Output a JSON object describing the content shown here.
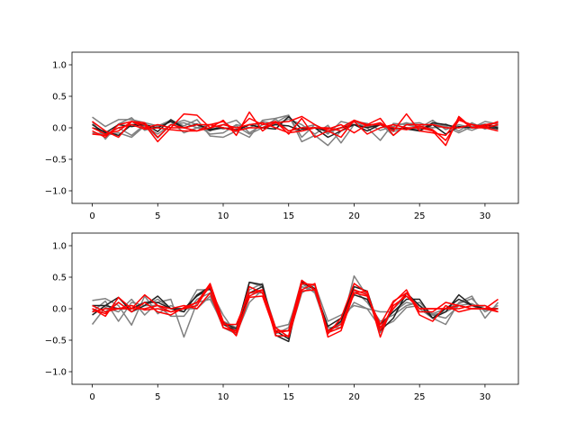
{
  "chart_data": [
    {
      "type": "line",
      "title": "",
      "xlabel": "",
      "ylabel": "",
      "xlim": [
        -1.55,
        32.55
      ],
      "ylim": [
        -1.2,
        1.2
      ],
      "xticks": [
        0,
        5,
        10,
        15,
        20,
        25,
        30
      ],
      "yticks": [
        -1.0,
        -0.5,
        0.0,
        0.5,
        1.0
      ],
      "ytick_labels": [
        "−1.0",
        "−0.5",
        "0.0",
        "0.5",
        "1.0"
      ],
      "grid": false,
      "colors": {
        "gray": "#808080",
        "black": "#222222",
        "red": "#ff0000"
      },
      "series": [
        {
          "color": "gray",
          "values": [
            0.17,
            0.02,
            0.13,
            0.13,
            0.08,
            0.03,
            0.12,
            0.03,
            0.13,
            -0.13,
            -0.15,
            -0.05,
            -0.15,
            0.12,
            0.15,
            0.2,
            -0.22,
            -0.12,
            -0.28,
            -0.05,
            0.1,
            0.0,
            -0.2,
            0.07,
            0.05,
            0.0,
            0.12,
            -0.03,
            0.05,
            0.0,
            0.1,
            0.06
          ]
        },
        {
          "color": "gray",
          "values": [
            0.1,
            -0.18,
            0.06,
            0.16,
            -0.04,
            0.02,
            0.1,
            -0.08,
            0.0,
            -0.05,
            0.05,
            0.12,
            -0.08,
            0.05,
            0.08,
            0.2,
            -0.15,
            0.05,
            -0.1,
            0.1,
            0.05,
            0.02,
            0.06,
            -0.12,
            0.06,
            0.08,
            0.0,
            0.02,
            -0.08,
            0.02,
            0.06,
            0.02
          ]
        },
        {
          "color": "gray",
          "values": [
            0.06,
            -0.12,
            -0.08,
            -0.15,
            0.03,
            -0.1,
            0.05,
            0.08,
            0.0,
            0.05,
            -0.02,
            0.03,
            -0.1,
            0.0,
            0.14,
            -0.05,
            0.0,
            0.05,
            -0.08,
            0.0,
            0.1,
            0.07,
            -0.04,
            0.02,
            0.08,
            0.02,
            0.0,
            0.06,
            -0.05,
            0.08,
            -0.02,
            0.06
          ]
        },
        {
          "color": "gray",
          "values": [
            -0.08,
            -0.1,
            0.0,
            -0.12,
            0.05,
            -0.16,
            0.05,
            0.12,
            0.05,
            -0.1,
            -0.08,
            0.05,
            0.0,
            0.1,
            0.06,
            0.14,
            0.05,
            -0.1,
            0.04,
            -0.24,
            0.05,
            -0.05,
            0.05,
            -0.06,
            0.0,
            -0.02,
            0.06,
            0.03,
            0.02,
            -0.04,
            0.04,
            0.03
          ]
        },
        {
          "color": "black",
          "values": [
            0.05,
            -0.08,
            0.05,
            0.02,
            0.05,
            0.0,
            0.1,
            0.0,
            0.05,
            -0.02,
            0.0,
            -0.05,
            0.05,
            0.0,
            -0.02,
            0.18,
            -0.02,
            0.0,
            -0.15,
            -0.05,
            0.05,
            0.0,
            0.05,
            -0.02,
            0.0,
            -0.05,
            0.08,
            0.05,
            0.0,
            0.05,
            0.02,
            -0.02
          ]
        },
        {
          "color": "black",
          "values": [
            0.0,
            -0.06,
            -0.12,
            0.05,
            0.06,
            -0.06,
            0.13,
            0.0,
            0.06,
            -0.04,
            0.0,
            -0.03,
            0.05,
            0.0,
            0.05,
            0.03,
            -0.05,
            0.0,
            -0.05,
            0.0,
            0.05,
            -0.05,
            0.05,
            0.0,
            -0.02,
            -0.05,
            0.05,
            -0.1,
            0.02,
            0.0,
            0.05,
            0.0
          ]
        },
        {
          "color": "red",
          "values": [
            0.1,
            -0.05,
            -0.15,
            0.1,
            0.05,
            -0.22,
            0.0,
            0.22,
            0.2,
            0.0,
            0.12,
            -0.12,
            0.25,
            -0.05,
            0.1,
            -0.1,
            0.15,
            -0.15,
            -0.05,
            -0.15,
            0.12,
            0.03,
            0.08,
            -0.05,
            0.22,
            -0.05,
            -0.08,
            -0.12,
            0.15,
            0.0,
            0.05,
            0.08
          ]
        },
        {
          "color": "red",
          "values": [
            -0.05,
            -0.15,
            0.05,
            0.1,
            0.08,
            -0.15,
            0.05,
            0.0,
            -0.05,
            0.05,
            0.0,
            -0.05,
            0.15,
            0.05,
            0.1,
            -0.05,
            0.0,
            0.0,
            0.0,
            -0.05,
            0.1,
            -0.1,
            0.0,
            0.05,
            0.0,
            0.0,
            -0.05,
            -0.28,
            0.18,
            0.0,
            0.0,
            -0.05
          ]
        },
        {
          "color": "red",
          "values": [
            0.0,
            -0.1,
            -0.05,
            0.1,
            0.0,
            0.05,
            0.0,
            0.0,
            0.05,
            0.05,
            0.1,
            -0.05,
            0.0,
            0.0,
            0.08,
            0.1,
            0.18,
            0.05,
            -0.05,
            0.0,
            0.12,
            0.05,
            0.15,
            -0.12,
            0.05,
            0.05,
            0.05,
            0.0,
            0.0,
            0.05,
            0.0,
            0.05
          ]
        },
        {
          "color": "red",
          "values": [
            -0.1,
            -0.12,
            0.0,
            0.05,
            -0.02,
            0.0,
            -0.03,
            -0.05,
            -0.05,
            0.0,
            0.05,
            0.0,
            0.05,
            0.08,
            0.0,
            -0.08,
            -0.05,
            0.0,
            -0.02,
            0.05,
            -0.08,
            0.05,
            0.05,
            0.0,
            -0.03,
            0.03,
            -0.03,
            -0.2,
            0.12,
            0.05,
            0.02,
            0.1
          ]
        }
      ]
    },
    {
      "type": "line",
      "title": "",
      "xlabel": "",
      "ylabel": "",
      "xlim": [
        -1.55,
        32.55
      ],
      "ylim": [
        -1.2,
        1.2
      ],
      "xticks": [
        0,
        5,
        10,
        15,
        20,
        25,
        30
      ],
      "yticks": [
        -1.0,
        -0.5,
        0.0,
        0.5,
        1.0
      ],
      "ytick_labels": [
        "−1.0",
        "−0.5",
        "0.0",
        "0.5",
        "1.0"
      ],
      "grid": false,
      "colors": {
        "gray": "#808080",
        "black": "#222222",
        "red": "#ff0000"
      },
      "series": [
        {
          "color": "gray",
          "values": [
            0.13,
            0.16,
            0.05,
            -0.26,
            0.2,
            -0.08,
            0.05,
            -0.05,
            0.3,
            0.3,
            -0.1,
            -0.4,
            0.3,
            0.4,
            -0.4,
            -0.3,
            0.45,
            0.3,
            -0.38,
            -0.22,
            0.1,
            0.0,
            -0.3,
            -0.2,
            0.02,
            0.05,
            -0.08,
            0.0,
            0.08,
            0.16,
            -0.05,
            0.05
          ]
        },
        {
          "color": "gray",
          "values": [
            -0.25,
            0.02,
            -0.05,
            0.15,
            -0.1,
            0.1,
            0.15,
            -0.45,
            0.1,
            0.15,
            -0.25,
            -0.35,
            0.42,
            0.35,
            -0.3,
            -0.25,
            0.35,
            0.28,
            -0.3,
            -0.3,
            0.52,
            0.2,
            -0.38,
            0.0,
            0.2,
            0.0,
            -0.15,
            -0.25,
            0.1,
            0.2,
            -0.15,
            0.1
          ]
        },
        {
          "color": "gray",
          "values": [
            -0.05,
            0.12,
            -0.2,
            0.1,
            0.05,
            0.05,
            -0.12,
            -0.12,
            0.15,
            0.25,
            -0.2,
            -0.3,
            0.25,
            0.25,
            -0.3,
            -0.45,
            0.25,
            0.38,
            -0.2,
            -0.1,
            0.05,
            0.0,
            -0.05,
            -0.05,
            0.1,
            0.05,
            -0.1,
            -0.15,
            0.05,
            0.08,
            -0.02,
            0.0
          ]
        },
        {
          "color": "gray",
          "values": [
            0.05,
            -0.05,
            0.1,
            -0.05,
            0.05,
            0.15,
            0.0,
            0.0,
            0.0,
            0.2,
            -0.3,
            -0.4,
            0.1,
            0.3,
            -0.35,
            -0.35,
            0.4,
            0.25,
            -0.35,
            -0.2,
            0.3,
            0.1,
            -0.2,
            -0.1,
            0.05,
            0.1,
            -0.1,
            -0.05,
            0.05,
            0.0,
            0.05,
            -0.05
          ]
        },
        {
          "color": "black",
          "values": [
            -0.1,
            0.05,
            0.18,
            -0.05,
            0.05,
            0.2,
            0.0,
            -0.05,
            0.22,
            0.35,
            -0.25,
            -0.35,
            0.42,
            0.38,
            -0.42,
            -0.52,
            0.42,
            0.32,
            -0.35,
            -0.2,
            0.35,
            0.28,
            -0.35,
            -0.15,
            0.25,
            0.05,
            -0.15,
            -0.05,
            0.22,
            0.05,
            0.0,
            0.0
          ]
        },
        {
          "color": "black",
          "values": [
            0.05,
            0.05,
            0.0,
            0.0,
            0.1,
            0.1,
            0.0,
            0.0,
            0.2,
            0.32,
            -0.22,
            -0.32,
            0.25,
            0.35,
            -0.35,
            -0.48,
            0.42,
            0.3,
            -0.28,
            -0.15,
            0.22,
            0.15,
            -0.25,
            -0.05,
            0.15,
            0.15,
            -0.15,
            0.0,
            0.15,
            0.05,
            0.0,
            0.0
          ]
        },
        {
          "color": "red",
          "values": [
            0.0,
            -0.12,
            0.18,
            0.0,
            0.22,
            0.05,
            -0.05,
            0.0,
            0.1,
            0.4,
            -0.2,
            -0.43,
            0.2,
            0.3,
            -0.43,
            -0.43,
            0.4,
            0.38,
            -0.45,
            -0.35,
            0.25,
            0.28,
            -0.45,
            0.1,
            0.3,
            -0.1,
            -0.2,
            0.05,
            -0.05,
            0.0,
            0.0,
            0.15
          ]
        },
        {
          "color": "red",
          "values": [
            -0.05,
            0.0,
            0.0,
            0.0,
            0.0,
            0.05,
            0.0,
            0.05,
            0.0,
            0.25,
            -0.3,
            -0.35,
            0.35,
            0.25,
            -0.35,
            -0.35,
            0.3,
            0.4,
            -0.4,
            -0.15,
            0.4,
            0.25,
            -0.35,
            0.05,
            0.2,
            0.0,
            0.0,
            0.0,
            0.05,
            0.0,
            0.0,
            -0.05
          ]
        },
        {
          "color": "red",
          "values": [
            0.05,
            -0.05,
            0.0,
            0.05,
            -0.02,
            0.0,
            -0.05,
            0.0,
            0.05,
            0.38,
            -0.25,
            -0.25,
            0.25,
            0.3,
            -0.3,
            -0.45,
            0.28,
            0.3,
            -0.38,
            -0.3,
            0.25,
            0.2,
            -0.25,
            0.12,
            0.25,
            -0.05,
            -0.05,
            0.1,
            0.05,
            0.0,
            0.0,
            0.0
          ]
        },
        {
          "color": "red",
          "values": [
            0.0,
            -0.08,
            0.1,
            -0.05,
            0.1,
            -0.05,
            -0.1,
            0.02,
            0.1,
            0.35,
            -0.3,
            -0.38,
            0.18,
            0.2,
            -0.38,
            -0.35,
            0.45,
            0.3,
            -0.35,
            -0.25,
            0.3,
            0.22,
            -0.3,
            0.0,
            0.25,
            0.0,
            0.0,
            0.0,
            0.0,
            0.05,
            0.05,
            -0.05
          ]
        }
      ]
    }
  ]
}
